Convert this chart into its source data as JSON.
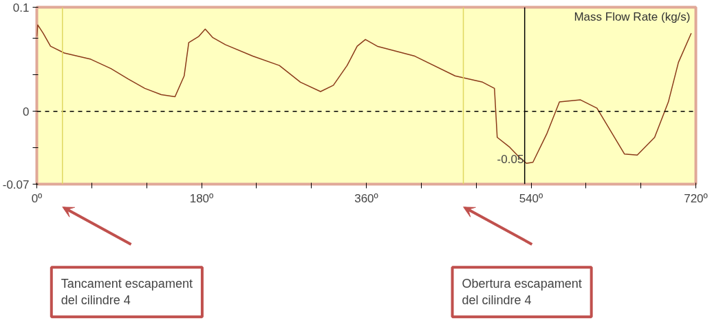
{
  "chart_data": {
    "type": "line",
    "ylabel": "Mass Flow Rate (kg/s)",
    "x": [
      0,
      1,
      7,
      15,
      30,
      59,
      81,
      100,
      118,
      136,
      151,
      161,
      166,
      177,
      184,
      192,
      206,
      236,
      265,
      288,
      310,
      324,
      339,
      350,
      359,
      372,
      413,
      457,
      487,
      500,
      503,
      516,
      527,
      535,
      542,
      557,
      571,
      594,
      612,
      627,
      642,
      656,
      675,
      690,
      701,
      715
    ],
    "series": [
      {
        "color": "#8b3a1a",
        "values": [
          0.072,
          0.083,
          0.075,
          0.0625,
          0.056,
          0.05,
          0.041,
          0.031,
          0.022,
          0.016,
          0.014,
          0.034,
          0.066,
          0.072,
          0.079,
          0.071,
          0.064,
          0.053,
          0.044,
          0.028,
          0.019,
          0.025,
          0.044,
          0.0625,
          0.069,
          0.0625,
          0.053,
          0.034,
          0.028,
          0.022,
          -0.025,
          -0.034,
          -0.044,
          -0.05,
          -0.049,
          -0.022,
          0.009,
          0.011,
          0.003,
          -0.019,
          -0.041,
          -0.042,
          -0.025,
          0.009,
          0.047,
          0.075
        ]
      }
    ],
    "xlim": [
      0,
      720
    ],
    "ylim": [
      -0.07,
      0.1
    ],
    "xticks": [
      {
        "value": 0,
        "label": "0º"
      },
      {
        "value": 60,
        "label": null
      },
      {
        "value": 120,
        "label": null
      },
      {
        "value": 180,
        "label": "180º"
      },
      {
        "value": 240,
        "label": null
      },
      {
        "value": 300,
        "label": null
      },
      {
        "value": 360,
        "label": "360º"
      },
      {
        "value": 420,
        "label": null
      },
      {
        "value": 480,
        "label": null
      },
      {
        "value": 540,
        "label": "540º"
      },
      {
        "value": 600,
        "label": null
      },
      {
        "value": 660,
        "label": null
      },
      {
        "value": 720,
        "label": "720º"
      }
    ],
    "yticks": [
      {
        "value": -0.07,
        "label": "-0.07"
      },
      {
        "value": -0.035,
        "label": null
      },
      0,
      {
        "value": 0.035,
        "label": null
      },
      {
        "value": 0.07,
        "label": null
      },
      {
        "value": 0.1,
        "label": "0.1"
      }
    ],
    "grid": false,
    "marker": "none",
    "line_style": "solid",
    "ref_lines": [
      {
        "axis": "y",
        "value": 0,
        "color": "#000000",
        "line_style": "dashed"
      },
      {
        "axis": "x",
        "value": 28,
        "color": "#e0d860"
      },
      {
        "axis": "x",
        "value": 466,
        "color": "#e0d860"
      },
      {
        "axis": "x",
        "value": 533,
        "color": "#000000"
      }
    ],
    "annotations": [
      {
        "text": "-0.05",
        "x": 535,
        "y": -0.05
      },
      "Tancament escapament del cilindre 4",
      "Obertura escapament del cilindre 4"
    ]
  }
}
